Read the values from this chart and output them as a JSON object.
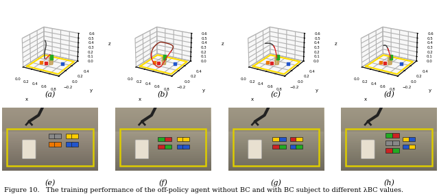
{
  "caption": "Figure 10.   The training performance of the off-policy agent without BC and with BC subject to different λBC values.",
  "subplot_labels_top": [
    "(a)",
    "(b)",
    "(c)",
    "(d)"
  ],
  "subplot_labels_bottom": [
    "(e)",
    "(f)",
    "(g)",
    "(h)"
  ],
  "label_fontsize": 8,
  "caption_fontsize": 7,
  "fig_bg": "#ffffff",
  "yellow_rect_color": "#ffdd00",
  "cube_tan_color": "#c8a050",
  "cube_red": "#dd2222",
  "cube_green": "#22aa22",
  "cube_blue": "#2255cc",
  "cube_orange": "#ee7700",
  "path_dark": "#333333",
  "path_red": "#cc1111",
  "path_brown": "#882211",
  "elev": 22,
  "azim": -60,
  "xlim": [
    0.0,
    0.8
  ],
  "ylim": [
    -0.2,
    0.4
  ],
  "zlim": [
    0.0,
    0.6
  ],
  "xticks": [
    0.0,
    0.2,
    0.4,
    0.6,
    0.8
  ],
  "yticks": [
    -0.2,
    0.0,
    0.2,
    0.4
  ],
  "zticks": [
    0.0,
    0.1,
    0.2,
    0.3,
    0.4,
    0.5,
    0.6
  ],
  "pane_color": [
    0.94,
    0.94,
    0.94,
    1.0
  ],
  "grid_color": "#cccccc"
}
